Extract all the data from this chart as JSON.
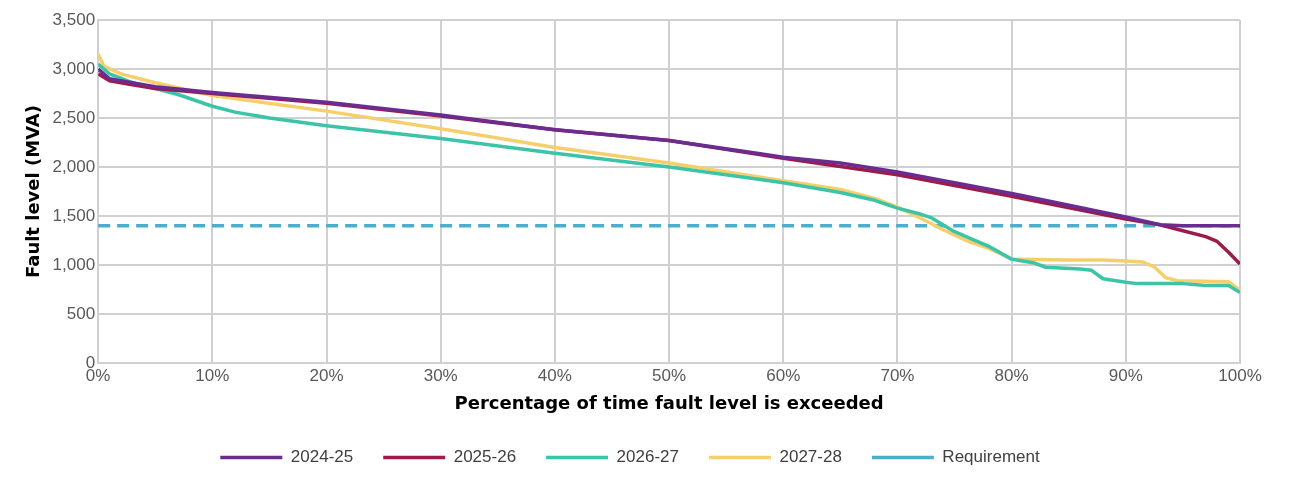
{
  "chart_data": {
    "type": "line",
    "xlabel": "Percentage of time fault level is exceeded",
    "ylabel": "Fault level (MVA)",
    "xlim": [
      0,
      100
    ],
    "xticks": [
      {
        "value": 0,
        "label": "0%"
      },
      {
        "value": 10,
        "label": "10%"
      },
      {
        "value": 20,
        "label": "20%"
      },
      {
        "value": 30,
        "label": "30%"
      },
      {
        "value": 40,
        "label": "40%"
      },
      {
        "value": 50,
        "label": "50%"
      },
      {
        "value": 60,
        "label": "60%"
      },
      {
        "value": 70,
        "label": "70%"
      },
      {
        "value": 80,
        "label": "80%"
      },
      {
        "value": 90,
        "label": "90%"
      },
      {
        "value": 100,
        "label": "100%"
      }
    ],
    "ylim": [
      0,
      3500
    ],
    "yticks": [
      0,
      500,
      {
        "value": 1000,
        "label": "1,000"
      },
      {
        "value": 1500,
        "label": "1,500"
      },
      {
        "value": 2000,
        "label": "2,000"
      },
      {
        "value": 2500,
        "label": "2,500"
      },
      {
        "value": 3000,
        "label": "3,000"
      },
      {
        "value": 3500,
        "label": "3,500"
      }
    ],
    "grid": true,
    "legend": "bottom",
    "marker": "none",
    "line_style": "solid",
    "series": [
      {
        "name": "2024-25",
        "color": "#6b2c91",
        "x": [
          0,
          1,
          5,
          10,
          20,
          30,
          40,
          50,
          60,
          65,
          70,
          80,
          90,
          93,
          95,
          100
        ],
        "values": [
          3000,
          2900,
          2820,
          2760,
          2660,
          2530,
          2380,
          2270,
          2100,
          2040,
          1950,
          1730,
          1490,
          1410,
          1400,
          1400
        ]
      },
      {
        "name": "2025-26",
        "color": "#9b1b4b",
        "x": [
          0,
          1,
          3,
          5,
          10,
          20,
          30,
          40,
          50,
          60,
          70,
          80,
          90,
          93,
          95,
          97,
          98,
          99,
          100
        ],
        "values": [
          2950,
          2880,
          2840,
          2800,
          2750,
          2650,
          2520,
          2380,
          2270,
          2090,
          1920,
          1700,
          1470,
          1410,
          1350,
          1290,
          1240,
          1130,
          1010
        ]
      },
      {
        "name": "2026-27",
        "color": "#3cc4a8",
        "x": [
          0,
          1,
          3,
          5,
          7,
          10,
          12,
          15,
          20,
          30,
          40,
          50,
          60,
          65,
          68,
          70,
          72,
          73,
          75,
          78,
          80,
          82,
          83,
          86,
          87,
          88,
          90,
          91,
          95,
          97,
          99,
          100
        ],
        "values": [
          3050,
          2950,
          2860,
          2800,
          2740,
          2620,
          2560,
          2500,
          2420,
          2290,
          2140,
          2000,
          1840,
          1740,
          1660,
          1580,
          1520,
          1480,
          1340,
          1190,
          1060,
          1020,
          977,
          960,
          946,
          860,
          824,
          810,
          810,
          790,
          790,
          720
        ]
      },
      {
        "name": "2027-28",
        "color": "#f5cf6b",
        "x": [
          0,
          0.5,
          2,
          5,
          10,
          20,
          30,
          40,
          50,
          60,
          65,
          68,
          70,
          72,
          74,
          76,
          78,
          80,
          85,
          88,
          90,
          91.5,
          92.5,
          93.5,
          94.5,
          99,
          100
        ],
        "values": [
          3150,
          3030,
          2950,
          2860,
          2730,
          2570,
          2390,
          2200,
          2040,
          1860,
          1770,
          1680,
          1590,
          1480,
          1360,
          1250,
          1170,
          1060,
          1050,
          1050,
          1040,
          1030,
          980,
          870,
          840,
          830,
          740
        ]
      },
      {
        "name": "Requirement",
        "color": "#4aaecc",
        "line_style": "dashed",
        "x": [
          0,
          100
        ],
        "values": [
          1400,
          1400
        ]
      }
    ]
  }
}
